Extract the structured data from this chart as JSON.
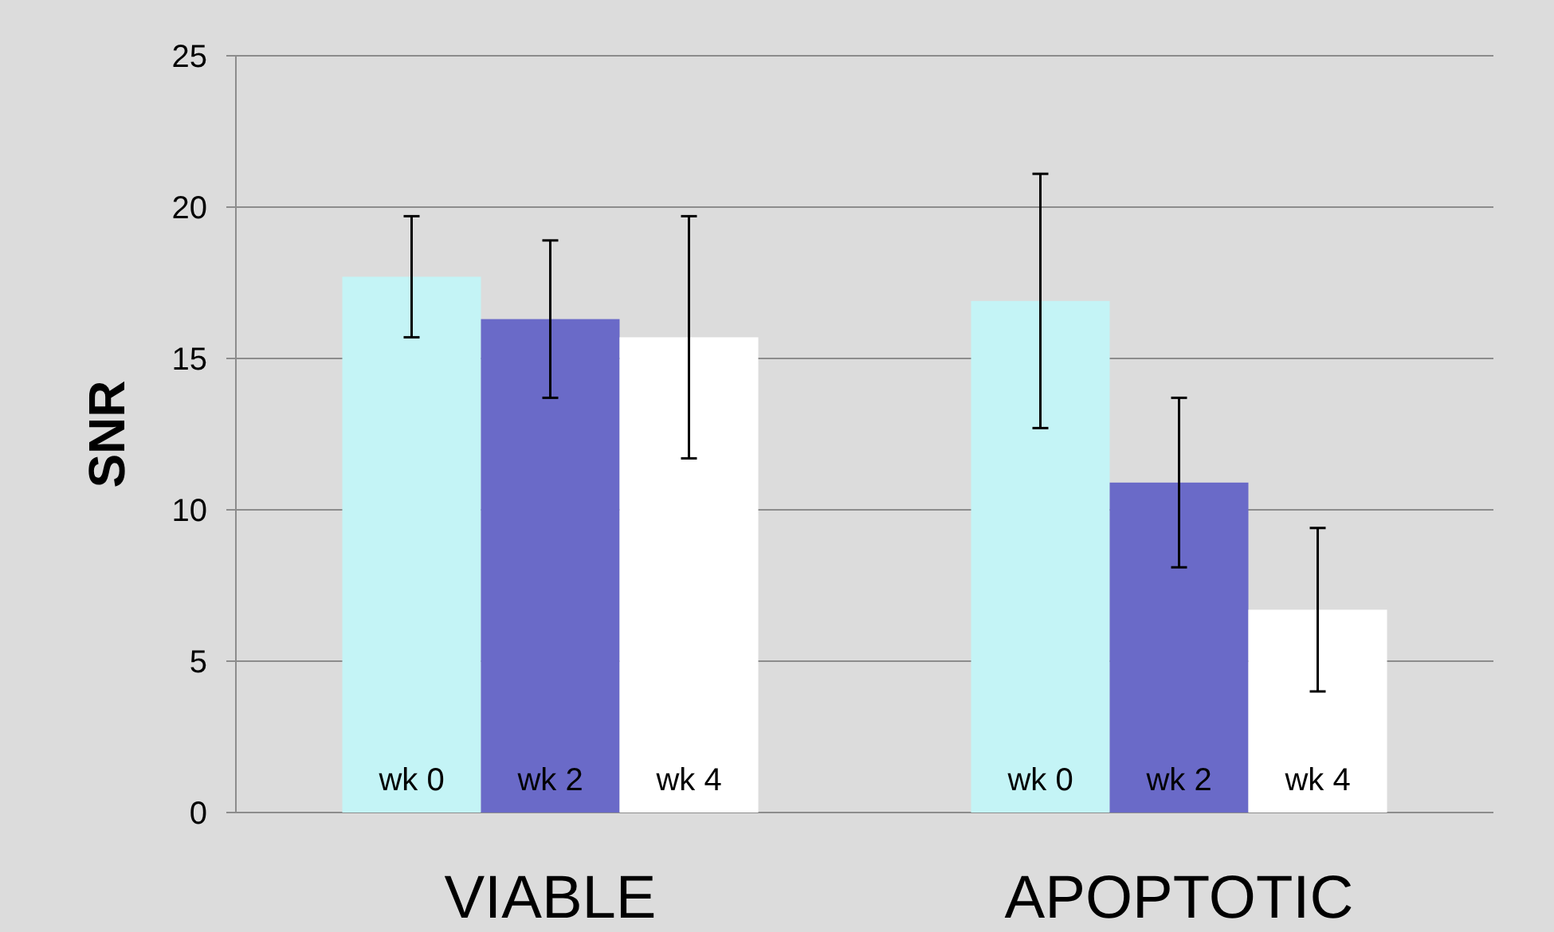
{
  "chart_data": {
    "type": "bar",
    "ylabel": "SNR",
    "categories": [
      "VIABLE",
      "APOPTOTIC"
    ],
    "series": [
      {
        "name": "wk 0",
        "color": "#c4f4f6",
        "values": [
          17.7,
          16.9
        ],
        "errors": [
          2,
          4.2
        ]
      },
      {
        "name": "wk 2",
        "color": "#6a6ac8",
        "values": [
          16.3,
          10.9
        ],
        "errors": [
          2.6,
          2.8
        ]
      },
      {
        "name": "wk 4",
        "color": "#ffffff",
        "values": [
          15.7,
          6.7
        ],
        "errors": [
          4,
          2.7
        ]
      }
    ],
    "ylim": [
      0,
      25
    ],
    "yticks": [
      0,
      5,
      10,
      15,
      20,
      25
    ],
    "grid": "y"
  }
}
